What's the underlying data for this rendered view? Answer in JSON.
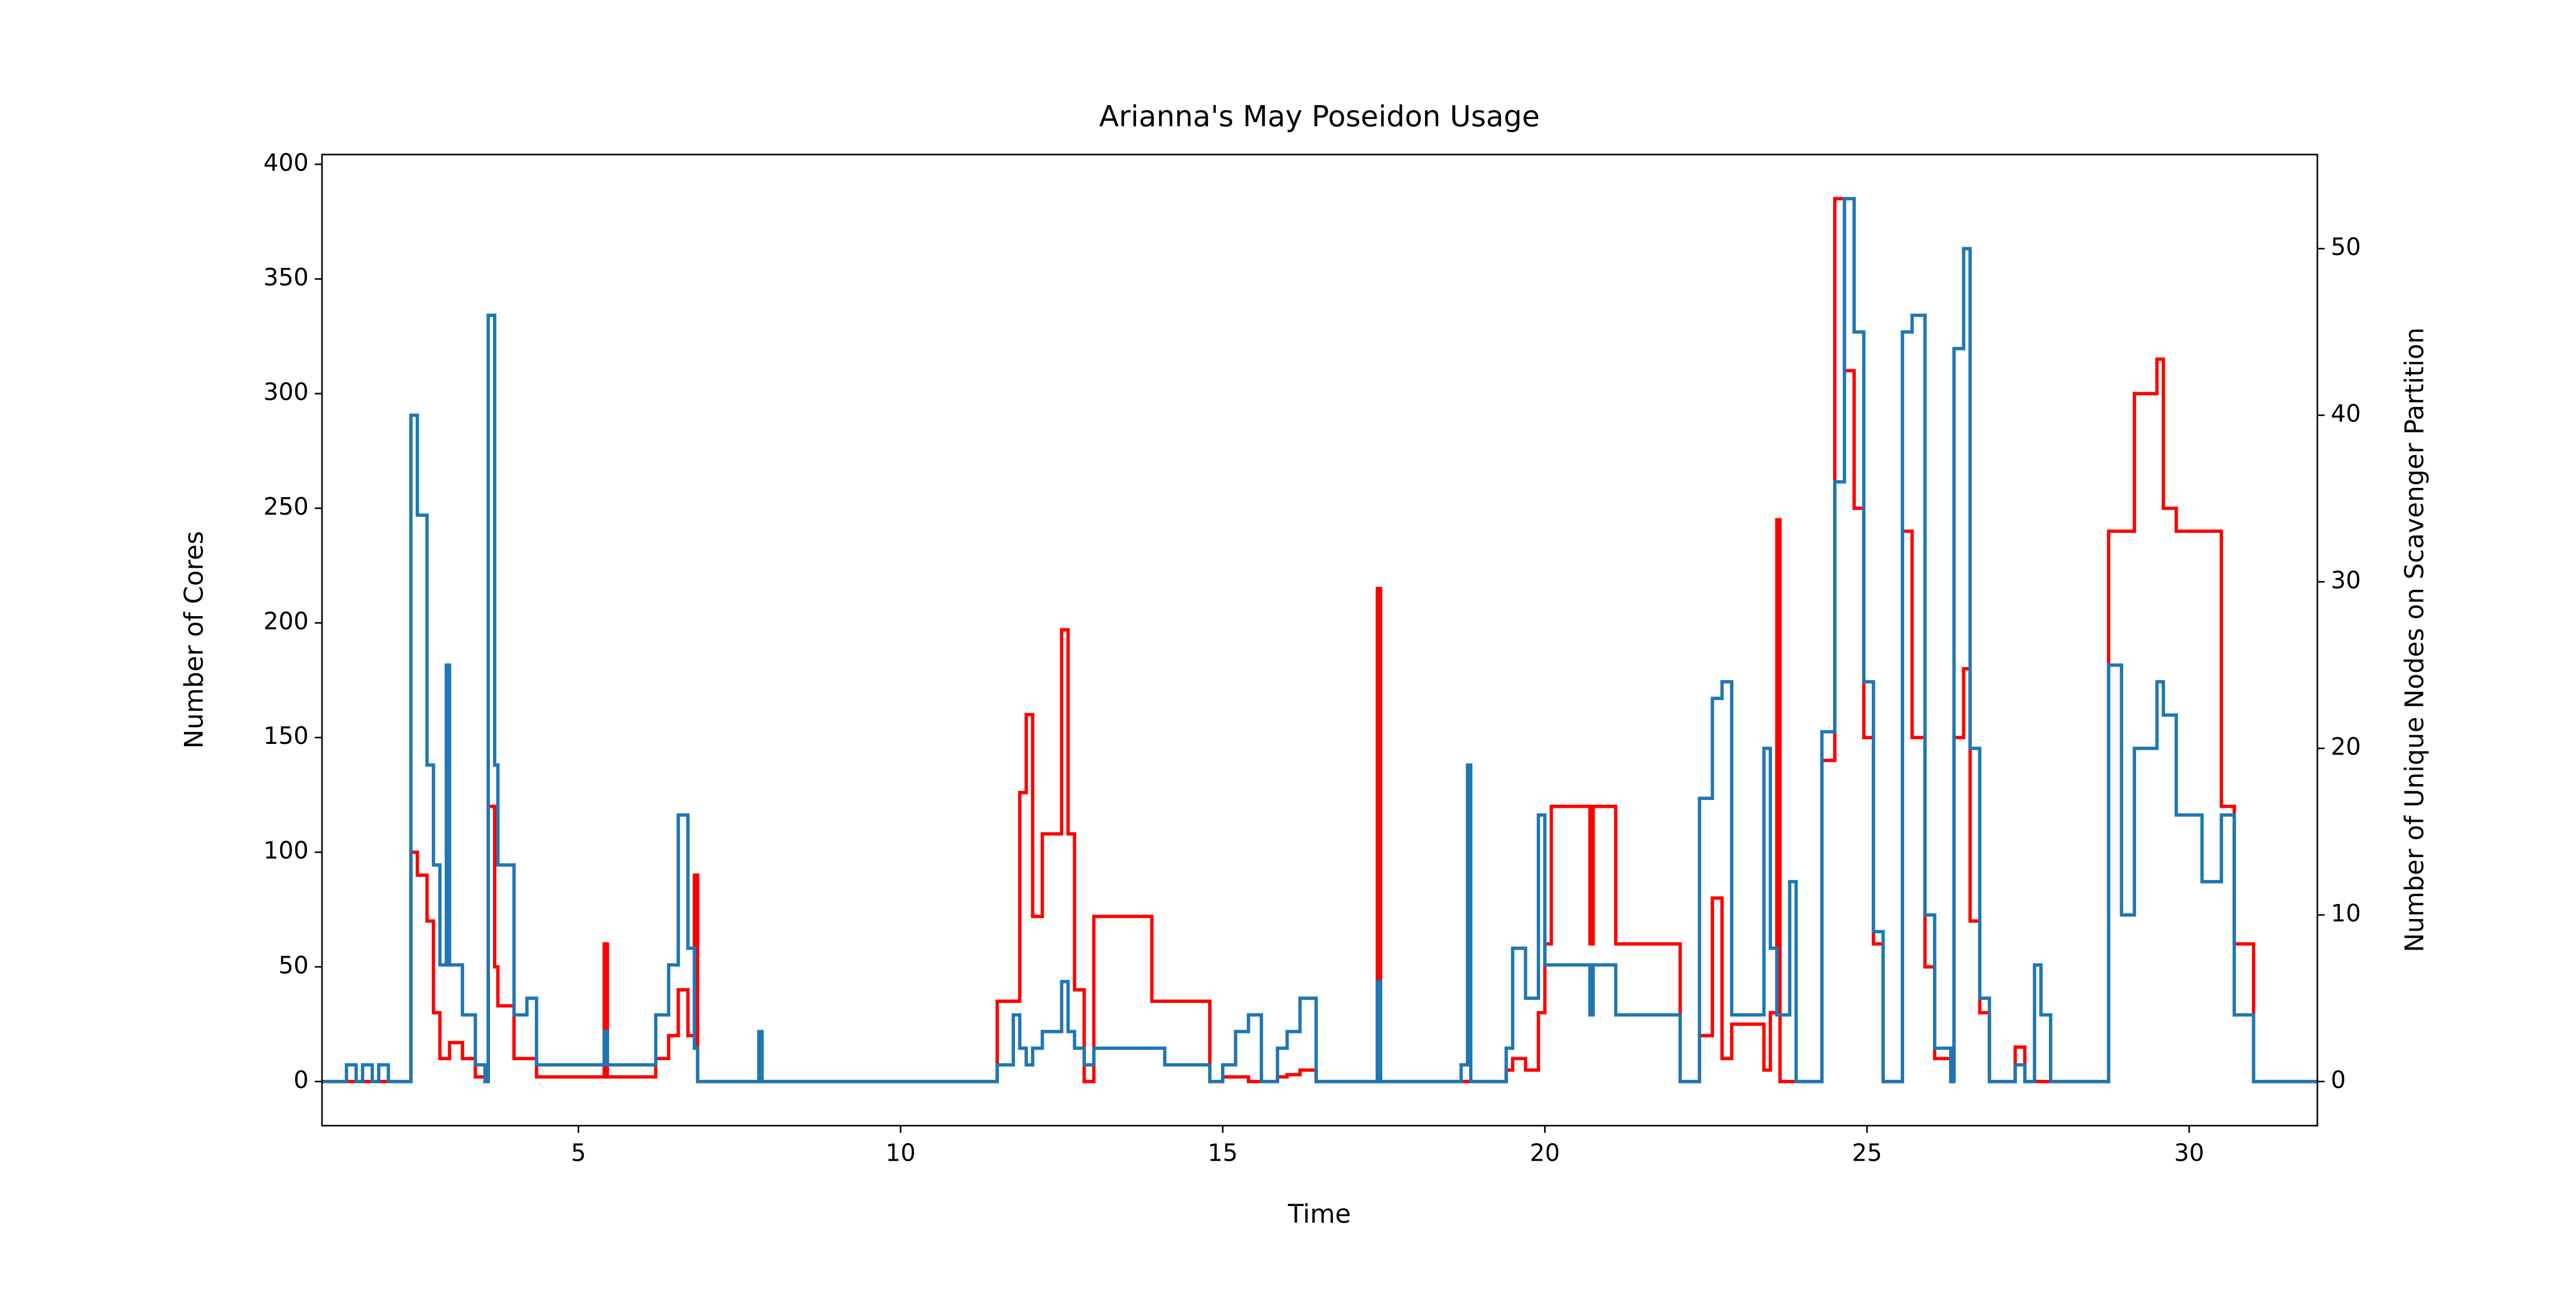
{
  "chart_data": {
    "type": "line",
    "drawstyle": "steps-post",
    "title": "Arianna's May Poseidon Usage",
    "x_label": "Time",
    "y_label": "Number of Cores",
    "y2_label": "Number of Unique Nodes on Scavenger Partition",
    "x": [
      1.02,
      1.4,
      1.55,
      1.65,
      1.8,
      1.9,
      2.05,
      2.4,
      2.5,
      2.65,
      2.75,
      2.85,
      2.95,
      3.0,
      3.2,
      3.4,
      3.55,
      3.6,
      3.7,
      3.75,
      4.0,
      4.2,
      4.35,
      4.45,
      5.4,
      5.45,
      6.2,
      6.4,
      6.55,
      6.7,
      6.8,
      6.85,
      7.8,
      7.85,
      11.5,
      11.75,
      11.85,
      11.95,
      12.05,
      12.2,
      12.5,
      12.6,
      12.7,
      12.85,
      13.0,
      13.9,
      14.1,
      14.8,
      15.0,
      15.2,
      15.4,
      15.6,
      15.85,
      16.0,
      16.2,
      16.45,
      17.4,
      17.45,
      18.7,
      18.8,
      18.85,
      19.4,
      19.5,
      19.7,
      19.9,
      20.0,
      20.1,
      20.7,
      20.75,
      21.1,
      21.2,
      22.1,
      22.4,
      22.6,
      22.75,
      22.9,
      23.4,
      23.5,
      23.6,
      23.65,
      23.8,
      23.9,
      24.3,
      24.5,
      24.65,
      24.8,
      24.95,
      25.1,
      25.25,
      25.55,
      25.7,
      25.9,
      26.05,
      26.3,
      26.35,
      26.5,
      26.6,
      26.75,
      26.9,
      27.3,
      27.45,
      27.6,
      27.7,
      27.85,
      28.75,
      28.95,
      29.15,
      29.5,
      29.6,
      29.8,
      30.2,
      30.5,
      30.7,
      31.0,
      31.99
    ],
    "series": [
      {
        "name": "Number of Cores",
        "color": "#ff0000",
        "axis": "y",
        "values": [
          0,
          0,
          0,
          0,
          0,
          0,
          0,
          100,
          90,
          70,
          30,
          10,
          10,
          17,
          10,
          2,
          0,
          120,
          50,
          33,
          10,
          10,
          2,
          2,
          60,
          2,
          10,
          20,
          40,
          20,
          90,
          0,
          0,
          0,
          35,
          35,
          126,
          160,
          72,
          108,
          197,
          108,
          40,
          0,
          72,
          35,
          35,
          0,
          2,
          2,
          0,
          0,
          2,
          3,
          5,
          0,
          215,
          0,
          0,
          0,
          0,
          5,
          10,
          5,
          30,
          60,
          120,
          60,
          120,
          60,
          60,
          0,
          20,
          80,
          10,
          25,
          5,
          30,
          245,
          0,
          0,
          0,
          140,
          385,
          310,
          250,
          150,
          60,
          0,
          240,
          150,
          50,
          10,
          0,
          150,
          180,
          70,
          30,
          0,
          15,
          0,
          0,
          0,
          0,
          240,
          240,
          300,
          315,
          250,
          240,
          240,
          120,
          60,
          0,
          0
        ]
      },
      {
        "name": "Unique Nodes",
        "color": "#1f77b4",
        "axis": "y2",
        "values": [
          0,
          1,
          0,
          1,
          0,
          1,
          0,
          40,
          34,
          19,
          13,
          7,
          25,
          7,
          4,
          1,
          0,
          46,
          19,
          13,
          4,
          5,
          1,
          1,
          3,
          1,
          4,
          7,
          16,
          8,
          2,
          0,
          3,
          0,
          1,
          4,
          2,
          1,
          2,
          3,
          6,
          3,
          2,
          1,
          2,
          2,
          1,
          0,
          1,
          3,
          4,
          0,
          2,
          3,
          5,
          0,
          6,
          0,
          1,
          19,
          0,
          2,
          8,
          5,
          16,
          7,
          7,
          4,
          7,
          4,
          4,
          0,
          17,
          23,
          24,
          4,
          20,
          8,
          4,
          4,
          12,
          0,
          21,
          36,
          53,
          45,
          24,
          9,
          0,
          45,
          46,
          10,
          2,
          0,
          44,
          50,
          20,
          5,
          0,
          1,
          0,
          7,
          4,
          0,
          25,
          10,
          20,
          24,
          22,
          16,
          12,
          16,
          4,
          0,
          0
        ]
      }
    ],
    "xlim": [
      1.02,
      31.99
    ],
    "xticks": [
      5,
      10,
      15,
      20,
      25,
      30
    ],
    "ylim": [
      -19.25,
      404.25
    ],
    "yticks": [
      0,
      50,
      100,
      150,
      200,
      250,
      300,
      350,
      400
    ],
    "y2lim": [
      -2.65,
      55.65
    ],
    "y2ticks": [
      0,
      10,
      20,
      30,
      40,
      50
    ]
  }
}
